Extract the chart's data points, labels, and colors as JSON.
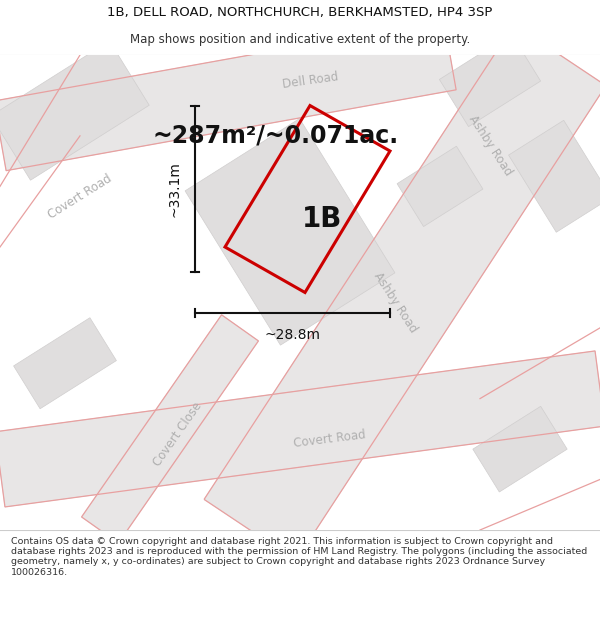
{
  "title_line1": "1B, DELL ROAD, NORTHCHURCH, BERKHAMSTED, HP4 3SP",
  "title_line2": "Map shows position and indicative extent of the property.",
  "area_text": "~287m²/~0.071ac.",
  "label_1b": "1B",
  "dim_width": "~28.8m",
  "dim_height": "~33.1m",
  "footer_text": "Contains OS data © Crown copyright and database right 2021. This information is subject to Crown copyright and database rights 2023 and is reproduced with the permission of HM Land Registry. The polygons (including the associated geometry, namely x, y co-ordinates) are subject to Crown copyright and database rights 2023 Ordnance Survey 100026316.",
  "map_bg": "#f2f0f0",
  "road_fill": "#e8e6e6",
  "block_fill": "#e0dede",
  "block_edge": "#d0cece",
  "pink_color": "#e8a0a0",
  "property_color": "#cc0000",
  "road_label_color": "#b0b0b0",
  "dim_color": "#111111",
  "text_color": "#111111"
}
